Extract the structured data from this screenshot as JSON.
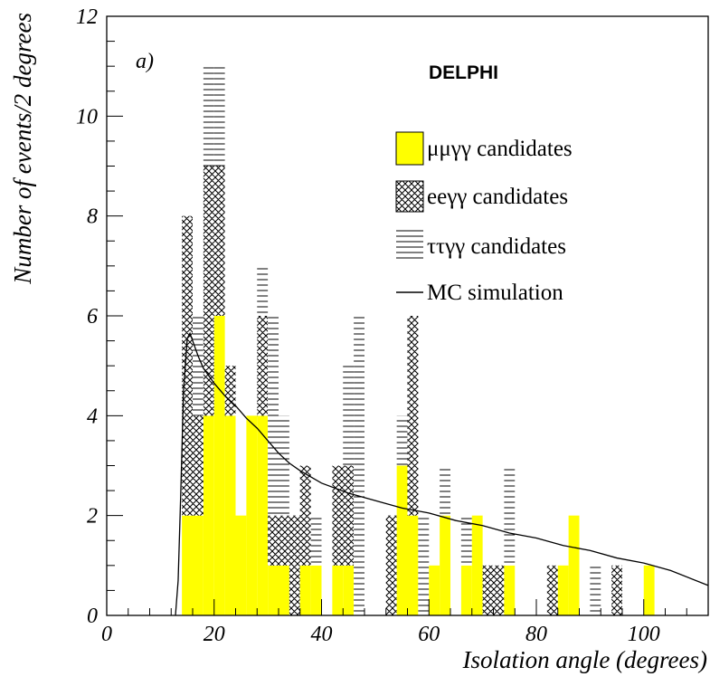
{
  "chart_data": {
    "type": "bar",
    "stacked": true,
    "panel_label": "a)",
    "experiment_label": "DELPHI",
    "xlabel": "Isolation angle (degrees)",
    "ylabel": "Number of events/2 degrees",
    "xlim": [
      0,
      112
    ],
    "ylim": [
      0,
      12
    ],
    "x_ticks": [
      0,
      20,
      40,
      60,
      80,
      100
    ],
    "y_ticks": [
      0,
      2,
      4,
      6,
      8,
      10,
      12
    ],
    "bin_width": 2,
    "bin_starts": [
      14,
      16,
      18,
      20,
      22,
      24,
      26,
      28,
      30,
      32,
      34,
      36,
      38,
      42,
      44,
      46,
      52,
      54,
      56,
      58,
      60,
      62,
      64,
      66,
      68,
      70,
      72,
      74,
      82,
      84,
      86,
      90,
      94,
      100
    ],
    "series": [
      {
        "name": "μμγγ candidates",
        "pattern": "solid-yellow",
        "color": "#ffff00",
        "values": [
          2,
          2,
          4,
          6,
          4,
          2,
          4,
          4,
          1,
          1,
          0,
          1,
          1,
          1,
          1,
          0,
          0,
          3,
          2,
          0,
          1,
          2,
          0,
          1,
          2,
          0,
          0,
          1,
          0,
          1,
          2,
          0,
          0,
          1
        ]
      },
      {
        "name": "eeγγ candidates",
        "pattern": "crosshatch",
        "values": [
          6,
          2,
          5,
          3,
          1,
          0,
          0,
          2,
          1,
          1,
          2,
          2,
          0,
          2,
          2,
          0,
          2,
          0,
          4,
          0,
          0,
          0,
          0,
          0,
          0,
          1,
          1,
          0,
          1,
          0,
          0,
          0,
          1,
          0
        ]
      },
      {
        "name": "ττγγ candidates",
        "pattern": "horizontal-lines",
        "values": [
          0,
          2,
          2,
          2,
          0,
          0,
          0,
          1,
          4,
          2,
          0,
          0,
          1,
          0,
          2,
          6,
          0,
          1,
          0,
          2,
          0,
          1,
          0,
          1,
          0,
          0,
          0,
          2,
          0,
          0,
          0,
          1,
          0,
          0
        ]
      }
    ],
    "mc_simulation": {
      "name": "MC simulation",
      "x": [
        12.8,
        13.3,
        13.8,
        14.3,
        15.0,
        15.5,
        16,
        17,
        18,
        20,
        22,
        24,
        26,
        28,
        30,
        32,
        34,
        36,
        40,
        45,
        50,
        55,
        60,
        65,
        70,
        75,
        80,
        85,
        90,
        95,
        100,
        105,
        112
      ],
      "y": [
        0,
        0.7,
        2.5,
        4.5,
        5.55,
        5.65,
        5.5,
        5.2,
        4.95,
        4.65,
        4.4,
        4.2,
        3.95,
        3.75,
        3.5,
        3.25,
        3.05,
        2.9,
        2.65,
        2.45,
        2.3,
        2.15,
        2.05,
        1.9,
        1.8,
        1.65,
        1.55,
        1.4,
        1.3,
        1.15,
        1.05,
        0.9,
        0.6
      ]
    }
  }
}
